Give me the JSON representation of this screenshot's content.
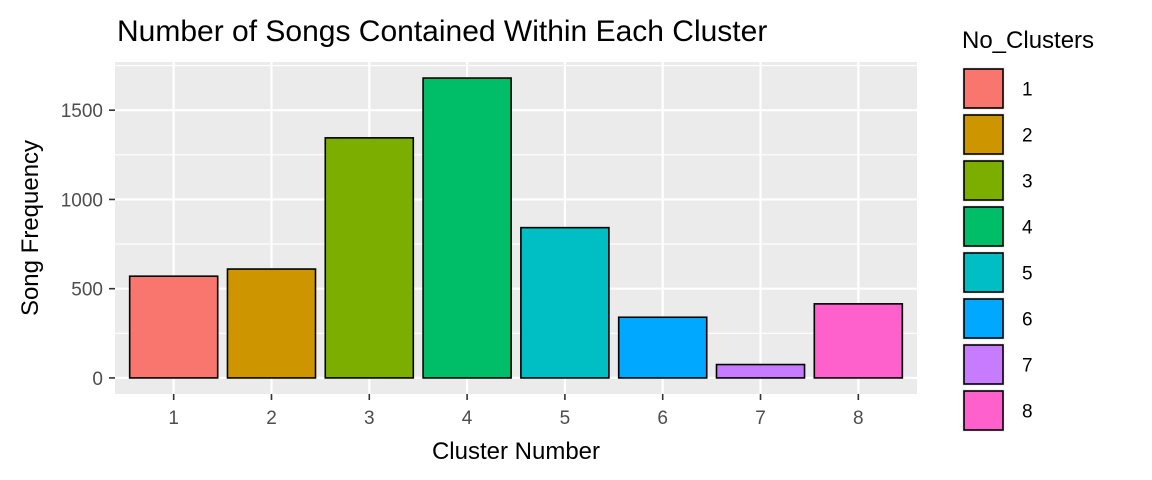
{
  "chart_data": {
    "type": "bar",
    "title": "Number of Songs Contained Within Each Cluster",
    "xlabel": "Cluster Number",
    "ylabel": "Song Frequency",
    "categories": [
      "1",
      "2",
      "3",
      "4",
      "5",
      "6",
      "7",
      "8"
    ],
    "values": [
      570,
      610,
      1345,
      1680,
      842,
      340,
      75,
      415
    ],
    "colors": [
      "#F8766D",
      "#CD9600",
      "#7CAE00",
      "#00BE67",
      "#00BFC4",
      "#00A9FF",
      "#C77CFF",
      "#FF61CC"
    ],
    "ylim": [
      -90,
      1770
    ],
    "yticks": [
      0,
      500,
      1000,
      1500
    ],
    "grid": true,
    "legend": {
      "title": "No_Clusters",
      "position": "right",
      "labels": [
        "1",
        "2",
        "3",
        "4",
        "5",
        "6",
        "7",
        "8"
      ]
    },
    "panel_background": "#EBEBEB",
    "grid_color": "#FFFFFF",
    "bar_outline": "#000000"
  }
}
